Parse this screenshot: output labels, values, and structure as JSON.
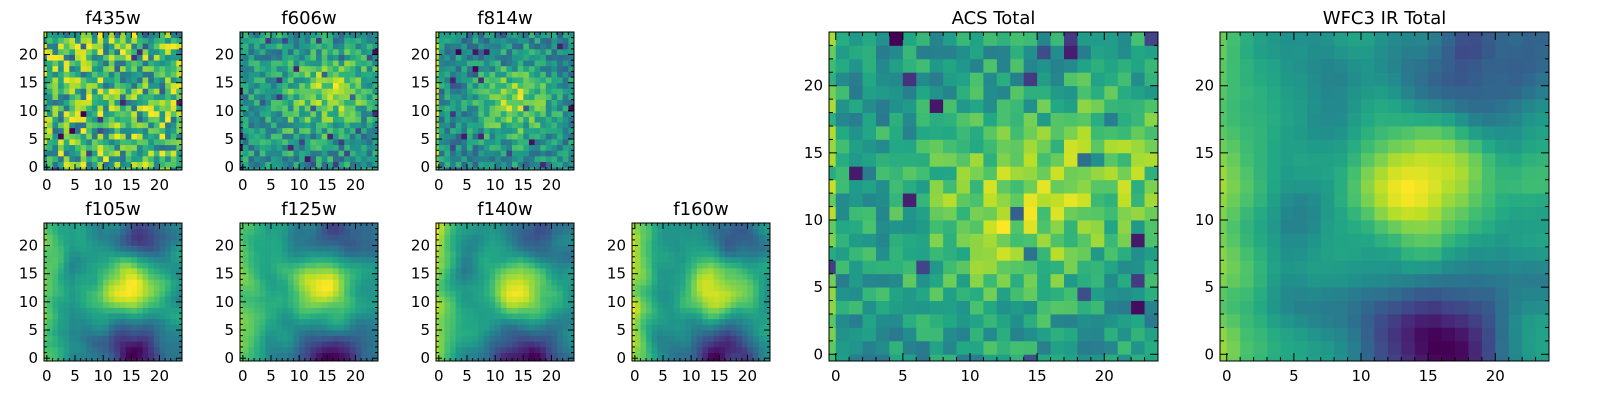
{
  "chart_data": [
    {
      "type": "heatmap",
      "title": "f435w",
      "colormap": "viridis",
      "grid_shape": [
        25,
        25
      ],
      "pattern": "uniform noise, no strong structure",
      "seed": 11,
      "xticks": [
        "0",
        "5",
        "10",
        "15",
        "20"
      ],
      "yticks": [
        "0",
        "5",
        "10",
        "15",
        "20"
      ]
    },
    {
      "type": "heatmap",
      "title": "f606w",
      "colormap": "viridis",
      "grid_shape": [
        25,
        25
      ],
      "pattern": "noisy with faint bright band near y=13-17 on right half",
      "seed": 23,
      "xticks": [
        "0",
        "5",
        "10",
        "15",
        "20"
      ],
      "yticks": [
        "0",
        "5",
        "10",
        "15",
        "20"
      ]
    },
    {
      "type": "heatmap",
      "title": "f814w",
      "colormap": "viridis",
      "grid_shape": [
        25,
        25
      ],
      "pattern": "noisy with bright blob centered near (14, 12), bright left column",
      "seed": 37,
      "xticks": [
        "0",
        "5",
        "10",
        "15",
        "20"
      ],
      "yticks": [
        "0",
        "5",
        "10",
        "15",
        "20"
      ]
    },
    {
      "type": "heatmap",
      "title": "f105w",
      "colormap": "viridis",
      "grid_shape": [
        25,
        25
      ],
      "pattern": "smooth; bright blob near (15, 13); dark lower-right corner",
      "seed": 41,
      "xticks": [
        "0",
        "5",
        "10",
        "15",
        "20"
      ],
      "yticks": [
        "0",
        "5",
        "10",
        "15",
        "20"
      ]
    },
    {
      "type": "heatmap",
      "title": "f125w",
      "colormap": "viridis",
      "grid_shape": [
        25,
        25
      ],
      "pattern": "smooth; bright blob near (15, 13); darker lower-right",
      "seed": 53,
      "xticks": [
        "0",
        "5",
        "10",
        "15",
        "20"
      ],
      "yticks": [
        "0",
        "5",
        "10",
        "15",
        "20"
      ]
    },
    {
      "type": "heatmap",
      "title": "f140w",
      "colormap": "viridis",
      "grid_shape": [
        25,
        25
      ],
      "pattern": "smooth; bright left edge; dark lower-right and upper-right",
      "seed": 67,
      "xticks": [
        "0",
        "5",
        "10",
        "15",
        "20"
      ],
      "yticks": [
        "0",
        "5",
        "10",
        "15",
        "20"
      ]
    },
    {
      "type": "heatmap",
      "title": "f160w",
      "colormap": "viridis",
      "grid_shape": [
        25,
        25
      ],
      "pattern": "smooth; bright left edge; dark lower-right and top-right",
      "seed": 79,
      "xticks": [
        "0",
        "5",
        "10",
        "15",
        "20"
      ],
      "yticks": [
        "0",
        "5",
        "10",
        "15",
        "20"
      ]
    },
    {
      "type": "heatmap",
      "title": "ACS Total",
      "colormap": "viridis",
      "grid_shape": [
        25,
        25
      ],
      "pattern": "noisy; bright diagonal band through center around (12, 12)",
      "seed": 91,
      "xticks": [
        "0",
        "5",
        "10",
        "15",
        "20"
      ],
      "yticks": [
        "0",
        "5",
        "10",
        "15",
        "20"
      ]
    },
    {
      "type": "heatmap",
      "title": "WFC3 IR Total",
      "colormap": "viridis",
      "grid_shape": [
        25,
        25
      ],
      "pattern": "smooth; bright blob near (15, 13); bright left edge; dark bottom-right and top-right",
      "seed": 103,
      "xticks": [
        "0",
        "5",
        "10",
        "15",
        "20"
      ],
      "yticks": [
        "0",
        "5",
        "10",
        "15",
        "20"
      ]
    }
  ]
}
